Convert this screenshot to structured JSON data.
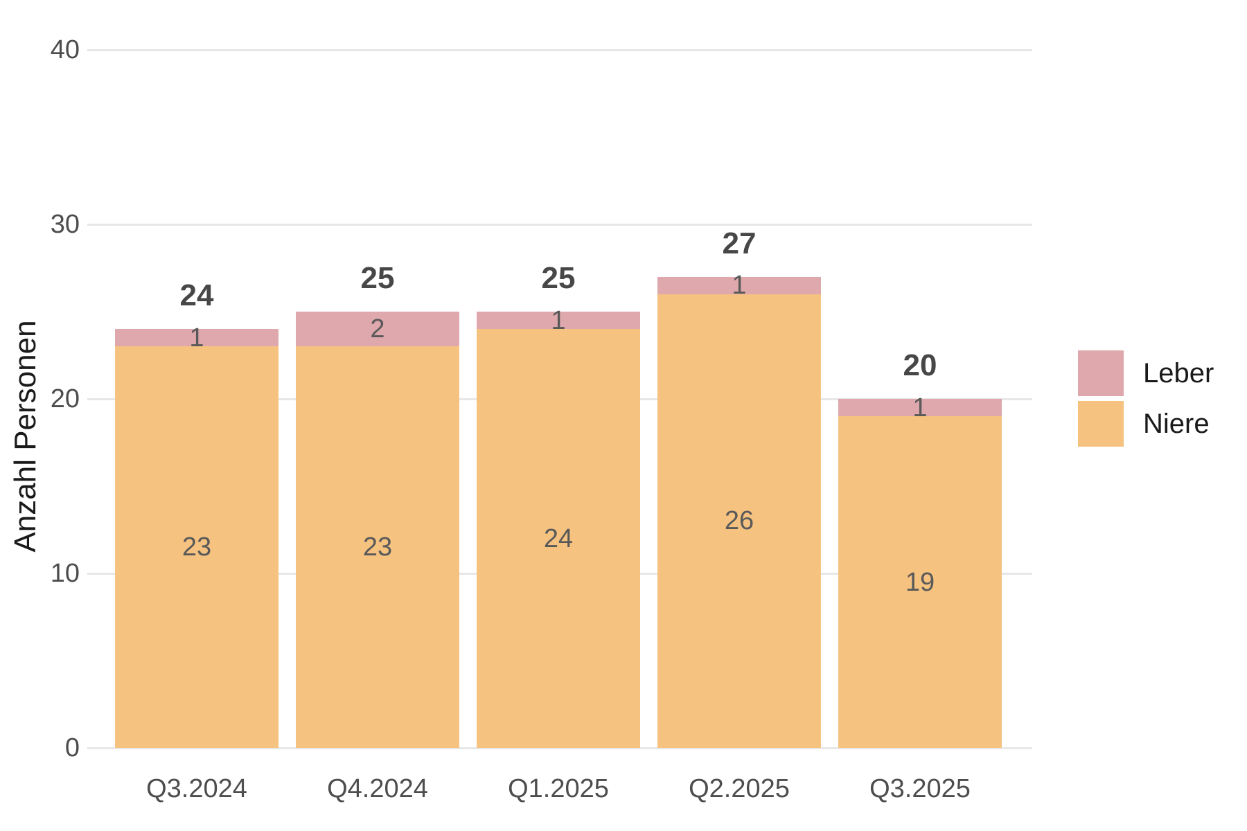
{
  "chart_data": {
    "type": "bar",
    "stacked": true,
    "title": "",
    "xlabel": "",
    "ylabel": "Anzahl Personen",
    "categories": [
      "Q3.2024",
      "Q4.2024",
      "Q1.2025",
      "Q2.2025",
      "Q3.2025"
    ],
    "series": [
      {
        "name": "Niere",
        "color": "#f5c280",
        "values": [
          23,
          23,
          24,
          26,
          19
        ]
      },
      {
        "name": "Leber",
        "color": "#dfa8ad",
        "values": [
          1,
          2,
          1,
          1,
          1
        ]
      }
    ],
    "totals": [
      24,
      25,
      25,
      27,
      20
    ],
    "ylim": [
      0,
      40
    ],
    "yticks": [
      0,
      10,
      20,
      30,
      40
    ],
    "grid": "horizontal",
    "gridline_color": "#e7e7e7",
    "legend_position": "right",
    "legend_order": [
      "Leber",
      "Niere"
    ]
  }
}
